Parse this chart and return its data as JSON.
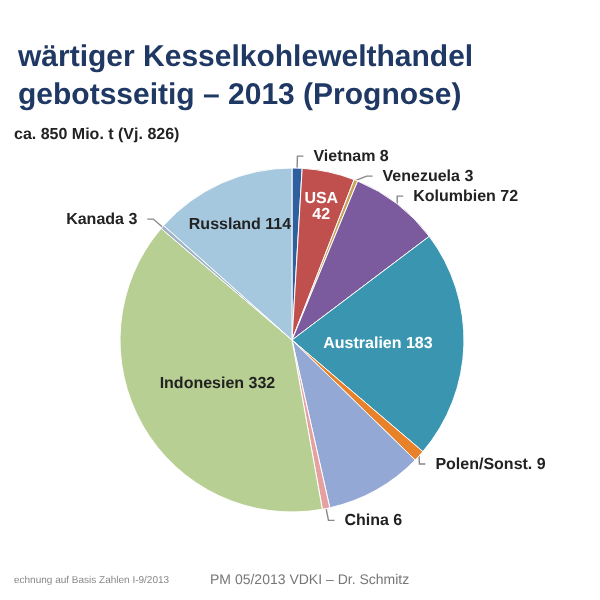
{
  "chart_data": {
    "type": "pie",
    "title": "wärtiger Kesselkohlewelthandel\ngebotsseitig – 2013 (Prognose)",
    "subtitle": "ca. 850 Mio. t (Vj. 826)",
    "categories": [
      "Vietnam",
      "USA",
      "Venezuela",
      "Kolumbien",
      "Australien",
      "Polen/Sonst.",
      null,
      "China",
      "Indonesien",
      "Kanada",
      "Russland"
    ],
    "values": [
      8,
      42,
      3,
      72,
      183,
      9,
      78,
      6,
      332,
      3,
      114
    ],
    "colors": [
      "#2e5f9e",
      "#c0504d",
      "#c9a25a",
      "#7c5a9e",
      "#3a96b0",
      "#e8822a",
      "#94a8d6",
      "#e6a0a0",
      "#b8cf93",
      "#9fb3c4",
      "#a5c8de"
    ],
    "annotations": [
      "echnung auf Basis Zahlen I-9/2013",
      "PM 05/2013 VDKI – Dr. Schmitz"
    ],
    "value_labels": [
      "8",
      "42",
      "3",
      "72",
      "183",
      "9",
      null,
      "6",
      "332",
      "3",
      "114"
    ],
    "legend": false
  }
}
